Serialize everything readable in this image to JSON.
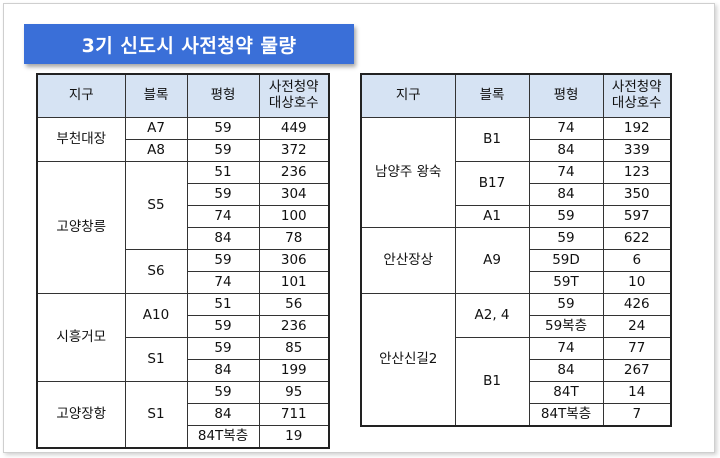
{
  "title": "3기 신도시 사전청약 물량",
  "headers": {
    "district": "지구",
    "block": "블록",
    "size": "평형",
    "units_line1": "사전청약",
    "units_line2": "대상호수"
  },
  "left_table": {
    "districts": [
      "부천대장",
      "고양창릉",
      "시흥거모",
      "고양장항"
    ],
    "blocks": [
      "A7",
      "A8",
      "S5",
      "S6",
      "A10",
      "S1",
      "S1"
    ],
    "sizes": [
      "59",
      "59",
      "51",
      "59",
      "74",
      "84",
      "59",
      "74",
      "51",
      "59",
      "59",
      "84",
      "59",
      "84",
      "84T복층"
    ],
    "units": [
      "449",
      "372",
      "236",
      "304",
      "100",
      "78",
      "306",
      "101",
      "56",
      "236",
      "85",
      "199",
      "95",
      "711",
      "19"
    ]
  },
  "right_table": {
    "districts": [
      "남양주 왕숙",
      "안산장상",
      "안산신길2"
    ],
    "blocks": [
      "B1",
      "B17",
      "A1",
      "A9",
      "A2, 4",
      "B1"
    ],
    "sizes": [
      "74",
      "84",
      "74",
      "84",
      "59",
      "59",
      "59D",
      "59T",
      "59",
      "59복층",
      "74",
      "84",
      "84T",
      "84T복층"
    ],
    "units": [
      "192",
      "339",
      "123",
      "350",
      "597",
      "622",
      "6",
      "10",
      "426",
      "24",
      "77",
      "267",
      "14",
      "7"
    ]
  }
}
